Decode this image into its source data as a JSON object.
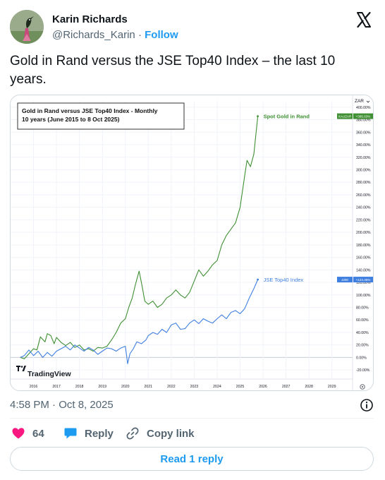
{
  "author": {
    "name": "Karin Richards",
    "handle": "@Richards_Karin",
    "separator": "·",
    "follow_label": "Follow"
  },
  "tweet": {
    "text": "Gold in Rand versus the JSE Top40 Index – the last 10 years.",
    "timestamp": "4:58 PM · Oct 8, 2025"
  },
  "icons": {
    "logo": "x-logo-icon",
    "info": "info-icon",
    "like": "heart-icon",
    "reply": "speech-bubble-icon",
    "copy": "link-icon",
    "watermark": "tradingview-logo-icon"
  },
  "colors": {
    "accent": "#1d9bf0",
    "like": "#f91880",
    "gold_series": "#3f8f33",
    "jse_series": "#3f7fe0"
  },
  "actions": {
    "likes_count": "64",
    "reply_label": "Reply",
    "copy_label": "Copy link"
  },
  "read_replies_label": "Read 1 reply",
  "chart_watermark": "TradingView",
  "chart_data": {
    "type": "line",
    "title": "Gold in Rand versus JSE Top40 Index - Monthly",
    "subtitle": "10 years (June 2015 to 8 Oct 2025)",
    "currency_label": "ZAR",
    "y_unit": "%",
    "ylim": [
      -30,
      410
    ],
    "xlim": [
      2015.0,
      2029.9
    ],
    "y_ticks": [
      -20,
      0,
      20,
      40,
      60,
      80,
      100,
      120,
      140,
      160,
      180,
      200,
      220,
      240,
      260,
      280,
      300,
      320,
      340,
      360,
      380,
      400
    ],
    "y_tick_labels": [
      "-20.00%",
      "0.00%",
      "20.00%",
      "40.00%",
      "60.00%",
      "80.00%",
      "100.00%",
      "120.00%",
      "140.00%",
      "160.00%",
      "180.00%",
      "200.00%",
      "220.00%",
      "240.00%",
      "260.00%",
      "280.00%",
      "300.00%",
      "320.00%",
      "340.00%",
      "360.00%",
      "380.00%",
      "400.00%"
    ],
    "x_ticks": [
      2016,
      2017,
      2018,
      2019,
      2020,
      2021,
      2022,
      2023,
      2024,
      2025,
      2026,
      2027,
      2028,
      2029
    ],
    "x_tick_labels": [
      "2016",
      "2017",
      "2018",
      "2019",
      "2020",
      "2021",
      "2022",
      "2023",
      "2024",
      "2025",
      "2026",
      "2027",
      "2028",
      "2029"
    ],
    "grid": true,
    "series": [
      {
        "name": "Spot Gold in Rand",
        "ticker": "XAUZAR",
        "last_value_label": "+385.63%",
        "x": [
          2015.42,
          2015.6,
          2015.8,
          2016.0,
          2016.15,
          2016.3,
          2016.5,
          2016.6,
          2016.75,
          2016.9,
          2017.0,
          2017.2,
          2017.4,
          2017.6,
          2017.8,
          2018.0,
          2018.2,
          2018.4,
          2018.6,
          2018.8,
          2019.0,
          2019.2,
          2019.4,
          2019.6,
          2019.8,
          2020.0,
          2020.15,
          2020.3,
          2020.45,
          2020.6,
          2020.7,
          2020.85,
          2021.0,
          2021.2,
          2021.4,
          2021.6,
          2021.8,
          2022.0,
          2022.2,
          2022.4,
          2022.6,
          2022.8,
          2023.0,
          2023.2,
          2023.4,
          2023.6,
          2023.8,
          2024.0,
          2024.2,
          2024.4,
          2024.6,
          2024.8,
          2025.0,
          2025.15,
          2025.3,
          2025.45,
          2025.6,
          2025.77
        ],
        "y": [
          0,
          -2,
          6,
          14,
          12,
          33,
          25,
          38,
          35,
          22,
          32,
          24,
          19,
          24,
          16,
          20,
          12,
          14,
          10,
          16,
          15,
          18,
          28,
          40,
          55,
          62,
          80,
          95,
          118,
          138,
          120,
          90,
          85,
          90,
          80,
          85,
          95,
          100,
          108,
          100,
          95,
          104,
          122,
          140,
          130,
          138,
          148,
          155,
          180,
          195,
          205,
          215,
          240,
          278,
          315,
          305,
          325,
          385.6
        ]
      },
      {
        "name": "JSE Top40 Index",
        "ticker": "J200",
        "last_value_label": "+124.46%",
        "x": [
          2015.42,
          2015.6,
          2015.8,
          2016.0,
          2016.2,
          2016.4,
          2016.6,
          2016.8,
          2017.0,
          2017.2,
          2017.4,
          2017.6,
          2017.8,
          2018.0,
          2018.2,
          2018.4,
          2018.6,
          2018.8,
          2019.0,
          2019.2,
          2019.4,
          2019.6,
          2019.8,
          2020.0,
          2020.1,
          2020.2,
          2020.35,
          2020.5,
          2020.7,
          2020.9,
          2021.0,
          2021.2,
          2021.4,
          2021.6,
          2021.8,
          2022.0,
          2022.2,
          2022.4,
          2022.6,
          2022.8,
          2023.0,
          2023.2,
          2023.4,
          2023.6,
          2023.8,
          2024.0,
          2024.2,
          2024.4,
          2024.6,
          2024.8,
          2025.0,
          2025.2,
          2025.4,
          2025.6,
          2025.77
        ],
        "y": [
          0,
          3,
          12,
          3,
          10,
          0,
          8,
          2,
          10,
          14,
          18,
          12,
          20,
          15,
          10,
          16,
          12,
          5,
          10,
          15,
          14,
          10,
          15,
          18,
          -10,
          6,
          14,
          25,
          22,
          28,
          35,
          40,
          37,
          45,
          40,
          52,
          55,
          45,
          46,
          55,
          60,
          54,
          62,
          58,
          55,
          62,
          68,
          62,
          72,
          75,
          70,
          78,
          95,
          110,
          124.5
        ]
      }
    ]
  }
}
